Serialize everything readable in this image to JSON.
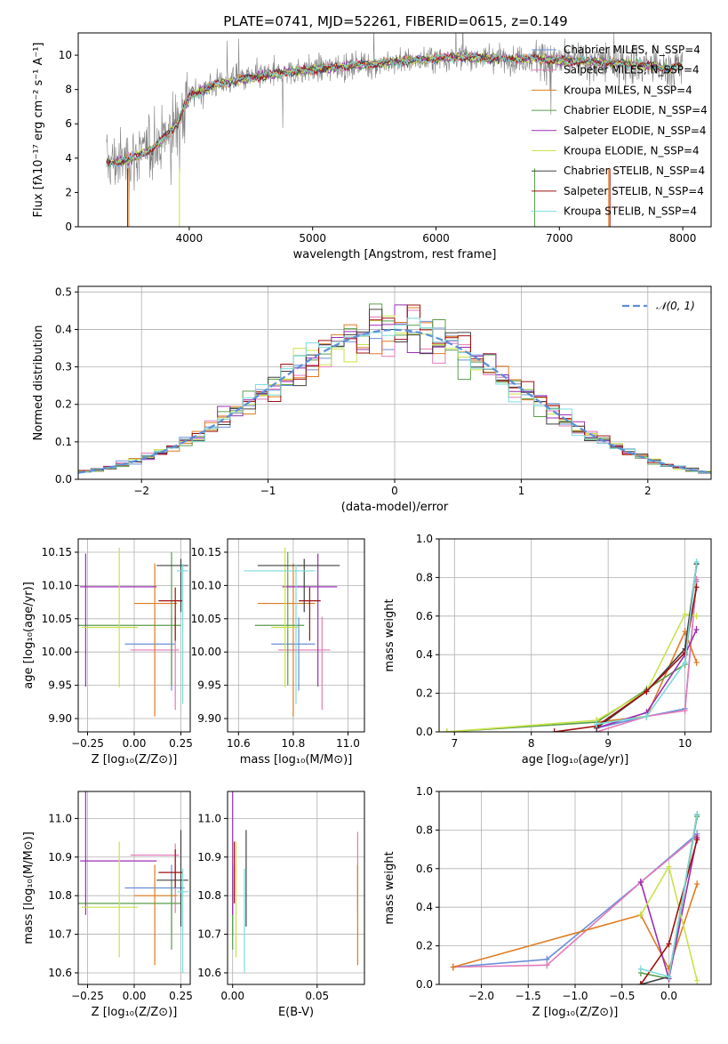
{
  "figure_title": "PLATE=0741, MJD=52261, FIBERID=0615, z=0.149",
  "colors": {
    "Chabrier MILES": "#6a8fd8",
    "Salpeter MILES": "#e47ab8",
    "Kroupa MILES": "#e07b20",
    "Chabrier ELODIE": "#5a9e4a",
    "Salpeter ELODIE": "#9b2fb4",
    "Kroupa ELODIE": "#c9e24a",
    "Chabrier STELIB": "#404040",
    "Salpeter STELIB": "#a01010",
    "Kroupa STELIB": "#7adbd8",
    "data": "#808080",
    "normal": "#5b8fd6"
  },
  "chart_data": [
    {
      "id": "spectrum",
      "type": "line",
      "title": "PLATE=0741, MJD=52261, FIBERID=0615, z=0.149",
      "xlabel": "wavelength [Angstrom, rest frame]",
      "ylabel": "Flux [fλ10⁻¹⁷ erg cm⁻² s⁻¹ A⁻¹]",
      "xlim": [
        3100,
        8230
      ],
      "ylim": [
        0,
        11.3
      ],
      "xticks": [
        4000,
        5000,
        6000,
        7000,
        8000
      ],
      "yticks": [
        0,
        2,
        4,
        6,
        8,
        10
      ],
      "legend": "top-right",
      "series": [
        {
          "name": "Chabrier MILES, N_SSP=4"
        },
        {
          "name": "Salpeter MILES, N_SSP=4"
        },
        {
          "name": "Kroupa MILES, N_SSP=4"
        },
        {
          "name": "Chabrier ELODIE, N_SSP=4"
        },
        {
          "name": "Salpeter ELODIE, N_SSP=4"
        },
        {
          "name": "Kroupa ELODIE, N_SSP=4"
        },
        {
          "name": "Chabrier STELIB, N_SSP=4"
        },
        {
          "name": "Salpeter STELIB, N_SSP=4"
        },
        {
          "name": "Kroupa STELIB, N_SSP=4"
        }
      ],
      "data_continuum": {
        "x": [
          3330,
          3500,
          3700,
          3900,
          4000,
          4200,
          4500,
          4800,
          5000,
          5200,
          5500,
          5800,
          6000,
          6200,
          6500,
          6800,
          7000,
          7300,
          7600,
          7900,
          8000
        ],
        "y": [
          3.7,
          3.9,
          4.5,
          6.0,
          7.6,
          8.3,
          8.7,
          9.0,
          9.2,
          9.3,
          9.5,
          9.7,
          9.8,
          9.9,
          9.8,
          9.8,
          9.7,
          9.6,
          9.5,
          9.2,
          9.4
        ]
      },
      "grid": false
    },
    {
      "id": "residuals",
      "type": "histogram",
      "xlabel": "(data-model)/error",
      "ylabel": "Normed distribution",
      "xlim": [
        -2.5,
        2.5
      ],
      "ylim": [
        0,
        0.515
      ],
      "xticks": [
        -2,
        -1,
        0,
        1,
        2
      ],
      "yticks": [
        0.0,
        0.1,
        0.2,
        0.3,
        0.4,
        0.5
      ],
      "legend": "top-right",
      "normal_curve": {
        "name": "𝒩(0, 1)",
        "mean": 0,
        "sigma": 1
      },
      "bin_width": 0.1,
      "grid": true
    },
    {
      "id": "age-vs-Z",
      "type": "errorbar",
      "xlabel": "Z [log₁₀(Z/Z⊙)]",
      "ylabel": "age  [log₁₀(age/yr)]",
      "xlim": [
        -0.3,
        0.3
      ],
      "ylim": [
        9.88,
        10.17
      ],
      "xticks": [
        -0.25,
        0.0,
        0.25
      ],
      "yticks": [
        9.9,
        9.95,
        10.0,
        10.05,
        10.1,
        10.15
      ],
      "points": [
        {
          "name": "Chabrier MILES",
          "x": 0.2,
          "y": 10.012,
          "xerr": [
            0.25,
            0.02
          ],
          "yerr": [
            0.07,
            0.04
          ]
        },
        {
          "name": "Salpeter MILES",
          "x": 0.22,
          "y": 10.003,
          "xerr": [
            0.24,
            0.02
          ],
          "yerr": [
            0.09,
            0.05
          ]
        },
        {
          "name": "Kroupa MILES",
          "x": 0.11,
          "y": 10.073,
          "xerr": [
            0.11,
            0.12
          ],
          "yerr": [
            0.17,
            0.06
          ]
        },
        {
          "name": "Chabrier ELODIE",
          "x": 0.2,
          "y": 10.04,
          "xerr": [
            0.5,
            0.05
          ],
          "yerr": [
            0.09,
            0.11
          ]
        },
        {
          "name": "Salpeter ELODIE",
          "x": -0.26,
          "y": 10.098,
          "xerr": [
            0.03,
            0.38
          ],
          "yerr": [
            0.15,
            0.05
          ]
        },
        {
          "name": "Kroupa ELODIE",
          "x": -0.08,
          "y": 10.037,
          "xerr": [
            0.2,
            0.1
          ],
          "yerr": [
            0.09,
            0.12
          ]
        },
        {
          "name": "Chabrier STELIB",
          "x": 0.25,
          "y": 10.13,
          "xerr": [
            0.13,
            0.04
          ],
          "yerr": [
            0.07,
            0.01
          ]
        },
        {
          "name": "Salpeter STELIB",
          "x": 0.22,
          "y": 10.077,
          "xerr": [
            0.09,
            0.04
          ],
          "yerr": [
            0.06,
            0.02
          ]
        },
        {
          "name": "Kroupa STELIB",
          "x": 0.26,
          "y": 10.122,
          "xerr": [
            0.03,
            0.03
          ],
          "yerr": [
            0.2,
            0.01
          ]
        }
      ],
      "grid": true
    },
    {
      "id": "age-vs-mass",
      "type": "errorbar",
      "xlabel": "mass [log₁₀(M/M⊙)]",
      "ylabel": "",
      "xlim": [
        10.56,
        11.06
      ],
      "ylim": [
        9.88,
        10.17
      ],
      "xticks": [
        10.6,
        10.8,
        11.0
      ],
      "yticks": [
        9.9,
        9.95,
        10.0,
        10.05,
        10.1,
        10.15
      ],
      "points": [
        {
          "name": "Chabrier MILES",
          "x": 10.82,
          "y": 10.012,
          "xerr": [
            0.1,
            0.06
          ],
          "yerr": [
            0.07,
            0.04
          ]
        },
        {
          "name": "Salpeter MILES",
          "x": 10.905,
          "y": 10.003,
          "xerr": [
            0.16,
            0.03
          ],
          "yerr": [
            0.09,
            0.05
          ]
        },
        {
          "name": "Kroupa MILES",
          "x": 10.8,
          "y": 10.073,
          "xerr": [
            0.13,
            0.08
          ],
          "yerr": [
            0.17,
            0.06
          ]
        },
        {
          "name": "Chabrier ELODIE",
          "x": 10.78,
          "y": 10.04,
          "xerr": [
            0.12,
            0.06
          ],
          "yerr": [
            0.09,
            0.11
          ]
        },
        {
          "name": "Salpeter ELODIE",
          "x": 10.89,
          "y": 10.098,
          "xerr": [
            0.13,
            0.07
          ],
          "yerr": [
            0.15,
            0.05
          ]
        },
        {
          "name": "Kroupa ELODIE",
          "x": 10.77,
          "y": 10.037,
          "xerr": [
            0.05,
            0.05
          ],
          "yerr": [
            0.09,
            0.12
          ]
        },
        {
          "name": "Chabrier STELIB",
          "x": 10.84,
          "y": 10.13,
          "xerr": [
            0.17,
            0.13
          ],
          "yerr": [
            0.07,
            0.01
          ]
        },
        {
          "name": "Salpeter STELIB",
          "x": 10.86,
          "y": 10.077,
          "xerr": [
            0.04,
            0.04
          ],
          "yerr": [
            0.06,
            0.02
          ]
        },
        {
          "name": "Kroupa STELIB",
          "x": 10.81,
          "y": 10.122,
          "xerr": [
            0.19,
            0.07
          ],
          "yerr": [
            0.2,
            0.01
          ]
        }
      ],
      "grid": true
    },
    {
      "id": "massweight-vs-age",
      "type": "line",
      "xlabel": "age  [log₁₀(age/yr)]",
      "ylabel": "mass weight",
      "xlim": [
        6.8,
        10.34
      ],
      "ylim": [
        0,
        1.0
      ],
      "xticks": [
        7,
        8,
        9,
        10
      ],
      "yticks": [
        0.0,
        0.2,
        0.4,
        0.6,
        0.8,
        1.0
      ],
      "series": [
        {
          "name": "Chabrier MILES",
          "x": [
            8.85,
            9.5,
            10.0,
            10.15
          ],
          "y": [
            0.02,
            0.08,
            0.12,
            0.78
          ]
        },
        {
          "name": "Salpeter MILES",
          "x": [
            8.85,
            9.5,
            10.0,
            10.15
          ],
          "y": [
            0.0,
            0.08,
            0.11,
            0.79
          ]
        },
        {
          "name": "Kroupa MILES",
          "x": [
            8.85,
            9.5,
            10.0,
            10.15
          ],
          "y": [
            0.05,
            0.08,
            0.52,
            0.36
          ]
        },
        {
          "name": "Chabrier ELODIE",
          "x": [
            6.9,
            8.85,
            9.5,
            10.0,
            10.15
          ],
          "y": [
            0.0,
            0.05,
            0.22,
            0.35,
            0.87
          ]
        },
        {
          "name": "Salpeter ELODIE",
          "x": [
            8.85,
            9.5,
            10.0,
            10.15
          ],
          "y": [
            0.02,
            0.1,
            0.4,
            0.53
          ]
        },
        {
          "name": "Kroupa ELODIE",
          "x": [
            6.9,
            8.85,
            9.5,
            10.0,
            10.15
          ],
          "y": [
            0.0,
            0.06,
            0.21,
            0.61,
            0.6
          ]
        },
        {
          "name": "Chabrier STELIB",
          "x": [
            8.85,
            9.5,
            10.0,
            10.15
          ],
          "y": [
            0.02,
            0.21,
            0.43,
            0.87
          ]
        },
        {
          "name": "Salpeter STELIB",
          "x": [
            8.3,
            8.85,
            9.5,
            10.0,
            10.15
          ],
          "y": [
            0.0,
            0.03,
            0.21,
            0.41,
            0.75
          ]
        },
        {
          "name": "Kroupa STELIB",
          "x": [
            8.85,
            9.5,
            10.0,
            10.15
          ],
          "y": [
            0.04,
            0.08,
            0.36,
            0.88
          ]
        }
      ],
      "grid": true
    },
    {
      "id": "mass-vs-Z",
      "type": "errorbar",
      "xlabel": "Z [log₁₀(Z/Z⊙)]",
      "ylabel": "mass [log₁₀(M/M⊙)]",
      "xlim": [
        -0.3,
        0.3
      ],
      "ylim": [
        10.57,
        11.07
      ],
      "xticks": [
        -0.25,
        0.0,
        0.25
      ],
      "yticks": [
        10.6,
        10.7,
        10.8,
        10.9,
        11.0
      ],
      "points": [
        {
          "name": "Chabrier MILES",
          "x": 0.2,
          "y": 10.82,
          "xerr": [
            0.25,
            0.07
          ],
          "yerr": [
            0.12,
            0.06
          ]
        },
        {
          "name": "Salpeter MILES",
          "x": 0.22,
          "y": 10.905,
          "xerr": [
            0.24,
            0.02
          ],
          "yerr": [
            0.15,
            0.03
          ]
        },
        {
          "name": "Kroupa MILES",
          "x": 0.11,
          "y": 10.8,
          "xerr": [
            0.11,
            0.12
          ],
          "yerr": [
            0.18,
            0.08
          ]
        },
        {
          "name": "Chabrier ELODIE",
          "x": 0.2,
          "y": 10.78,
          "xerr": [
            0.5,
            0.05
          ],
          "yerr": [
            0.12,
            0.06
          ]
        },
        {
          "name": "Salpeter ELODIE",
          "x": -0.26,
          "y": 10.89,
          "xerr": [
            0.03,
            0.38
          ],
          "yerr": [
            0.14,
            0.25
          ]
        },
        {
          "name": "Kroupa ELODIE",
          "x": -0.08,
          "y": 10.77,
          "xerr": [
            0.2,
            0.1
          ],
          "yerr": [
            0.13,
            0.17
          ]
        },
        {
          "name": "Chabrier STELIB",
          "x": 0.25,
          "y": 10.84,
          "xerr": [
            0.13,
            0.04
          ],
          "yerr": [
            0.12,
            0.13
          ]
        },
        {
          "name": "Salpeter STELIB",
          "x": 0.22,
          "y": 10.86,
          "xerr": [
            0.09,
            0.04
          ],
          "yerr": [
            0.04,
            0.06
          ]
        },
        {
          "name": "Kroupa STELIB",
          "x": 0.26,
          "y": 10.81,
          "xerr": [
            0.03,
            0.03
          ],
          "yerr": [
            0.21,
            0.06
          ]
        }
      ],
      "grid": true
    },
    {
      "id": "mass-vs-ebv",
      "type": "errorbar",
      "xlabel": "E(B-V)",
      "ylabel": "",
      "xlim": [
        -0.003,
        0.078
      ],
      "ylim": [
        10.57,
        11.07
      ],
      "xticks": [
        0.0,
        0.05
      ],
      "yticks": [
        10.6,
        10.7,
        10.8,
        10.9,
        11.0
      ],
      "points": [
        {
          "name": "Chabrier MILES",
          "x": 0.0,
          "y": 10.82,
          "yerr": [
            0.12,
            0.06
          ]
        },
        {
          "name": "Salpeter MILES",
          "x": 0.074,
          "y": 10.905,
          "yerr": [
            0.15,
            0.06
          ]
        },
        {
          "name": "Kroupa MILES",
          "x": 0.074,
          "y": 10.8,
          "yerr": [
            0.18,
            0.08
          ]
        },
        {
          "name": "Chabrier ELODIE",
          "x": 0.0,
          "y": 10.78,
          "yerr": [
            0.12,
            0.06
          ]
        },
        {
          "name": "Salpeter ELODIE",
          "x": 0.0,
          "y": 10.89,
          "yerr": [
            0.14,
            0.25
          ]
        },
        {
          "name": "Kroupa ELODIE",
          "x": 0.002,
          "y": 10.77,
          "yerr": [
            0.13,
            0.17
          ]
        },
        {
          "name": "Chabrier STELIB",
          "x": 0.008,
          "y": 10.84,
          "yerr": [
            0.12,
            0.13
          ]
        },
        {
          "name": "Salpeter STELIB",
          "x": 0.001,
          "y": 10.86,
          "yerr": [
            0.08,
            0.08
          ]
        },
        {
          "name": "Kroupa STELIB",
          "x": 0.007,
          "y": 10.81,
          "yerr": [
            0.21,
            0.06
          ]
        }
      ],
      "grid": true
    },
    {
      "id": "massweight-vs-Z",
      "type": "line",
      "xlabel": "Z [log₁₀(Z/Z⊙)]",
      "ylabel": "mass weight",
      "xlim": [
        -2.45,
        0.45
      ],
      "ylim": [
        0,
        1.0
      ],
      "xticks": [
        -2.0,
        -1.5,
        -1.0,
        -0.5,
        0.0
      ],
      "yticks": [
        0.0,
        0.2,
        0.4,
        0.6,
        0.8,
        1.0
      ],
      "series": [
        {
          "name": "Chabrier MILES",
          "x": [
            -2.3,
            -1.3,
            -0.3,
            0.3
          ],
          "y": [
            0.09,
            0.13,
            0.53,
            0.78
          ]
        },
        {
          "name": "Salpeter MILES",
          "x": [
            -2.3,
            -1.3,
            -0.3,
            0.3
          ],
          "y": [
            0.09,
            0.1,
            0.53,
            0.77
          ]
        },
        {
          "name": "Kroupa MILES",
          "x": [
            -2.3,
            -0.3,
            0.0,
            0.3
          ],
          "y": [
            0.09,
            0.36,
            0.08,
            0.52
          ]
        },
        {
          "name": "Chabrier ELODIE",
          "x": [
            -0.3,
            0.0,
            0.3
          ],
          "y": [
            0.06,
            0.03,
            0.87
          ]
        },
        {
          "name": "Salpeter ELODIE",
          "x": [
            -0.3,
            0.0,
            0.3
          ],
          "y": [
            0.53,
            0.03,
            0.76
          ]
        },
        {
          "name": "Kroupa ELODIE",
          "x": [
            -0.3,
            0.0,
            0.3
          ],
          "y": [
            0.36,
            0.61,
            0.02
          ]
        },
        {
          "name": "Chabrier STELIB",
          "x": [
            -0.3,
            0.0,
            0.3
          ],
          "y": [
            0.0,
            0.04,
            0.88
          ]
        },
        {
          "name": "Salpeter STELIB",
          "x": [
            -0.3,
            0.0,
            0.3
          ],
          "y": [
            0.0,
            0.21,
            0.75
          ]
        },
        {
          "name": "Kroupa STELIB",
          "x": [
            -0.3,
            0.0,
            0.3
          ],
          "y": [
            0.08,
            0.04,
            0.88
          ]
        }
      ],
      "grid": true
    }
  ]
}
